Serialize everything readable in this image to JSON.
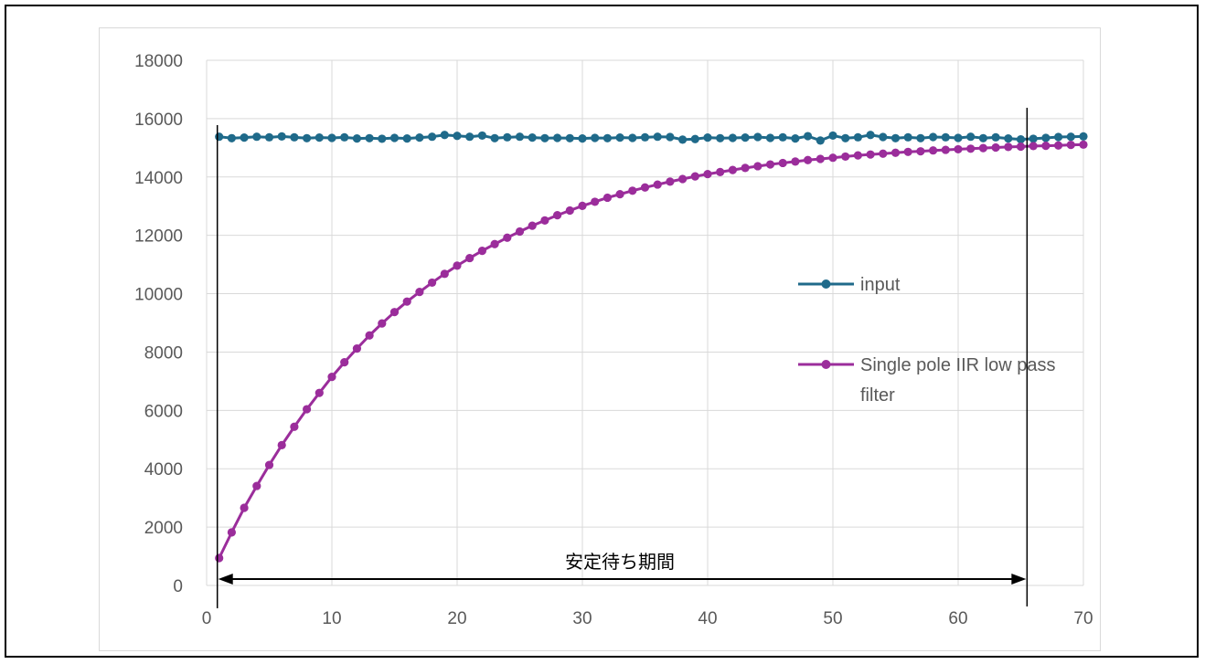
{
  "chart_data": {
    "type": "line",
    "title": "",
    "xlabel": "",
    "ylabel": "",
    "xlim": [
      0,
      70
    ],
    "ylim": [
      0,
      18000
    ],
    "x_ticks": [
      0,
      10,
      20,
      30,
      40,
      50,
      60,
      70
    ],
    "y_ticks": [
      0,
      2000,
      4000,
      6000,
      8000,
      10000,
      12000,
      14000,
      16000,
      18000
    ],
    "grid": true,
    "legend_position": "right",
    "x": [
      1,
      2,
      3,
      4,
      5,
      6,
      7,
      8,
      9,
      10,
      11,
      12,
      13,
      14,
      15,
      16,
      17,
      18,
      19,
      20,
      21,
      22,
      23,
      24,
      25,
      26,
      27,
      28,
      29,
      30,
      31,
      32,
      33,
      34,
      35,
      36,
      37,
      38,
      39,
      40,
      41,
      42,
      43,
      44,
      45,
      46,
      47,
      48,
      49,
      50,
      51,
      52,
      53,
      54,
      55,
      56,
      57,
      58,
      59,
      60,
      61,
      62,
      63,
      64,
      65,
      66,
      67,
      68,
      69,
      70
    ],
    "series": [
      {
        "name": "input",
        "color": "#1f6a8a",
        "values": [
          15380,
          15330,
          15350,
          15380,
          15360,
          15390,
          15360,
          15330,
          15350,
          15340,
          15360,
          15320,
          15330,
          15310,
          15340,
          15320,
          15350,
          15380,
          15440,
          15410,
          15380,
          15420,
          15330,
          15360,
          15380,
          15350,
          15330,
          15340,
          15330,
          15320,
          15340,
          15330,
          15350,
          15340,
          15360,
          15380,
          15370,
          15280,
          15300,
          15350,
          15330,
          15340,
          15350,
          15370,
          15340,
          15360,
          15320,
          15400,
          15250,
          15420,
          15330,
          15360,
          15440,
          15370,
          15330,
          15360,
          15330,
          15370,
          15360,
          15340,
          15380,
          15330,
          15360,
          15320,
          15290,
          15310,
          15340,
          15370,
          15380,
          15390
        ]
      },
      {
        "name": "Single pole IIR low pass filter",
        "color": "#9b2d9b",
        "values": [
          940,
          1820,
          2660,
          3410,
          4130,
          4810,
          5440,
          6040,
          6600,
          7150,
          7650,
          8120,
          8570,
          8980,
          9370,
          9730,
          10060,
          10380,
          10680,
          10960,
          11220,
          11470,
          11700,
          11920,
          12130,
          12330,
          12510,
          12690,
          12850,
          13010,
          13150,
          13290,
          13410,
          13530,
          13640,
          13740,
          13840,
          13930,
          14020,
          14100,
          14170,
          14240,
          14310,
          14370,
          14430,
          14480,
          14530,
          14580,
          14620,
          14660,
          14700,
          14740,
          14770,
          14800,
          14830,
          14860,
          14880,
          14910,
          14930,
          14950,
          14970,
          14990,
          15010,
          15030,
          15040,
          15060,
          15070,
          15080,
          15100,
          15110
        ]
      }
    ],
    "annotation": {
      "label": "安定待ち期間",
      "x_start": 1,
      "x_end": 65.5
    }
  }
}
